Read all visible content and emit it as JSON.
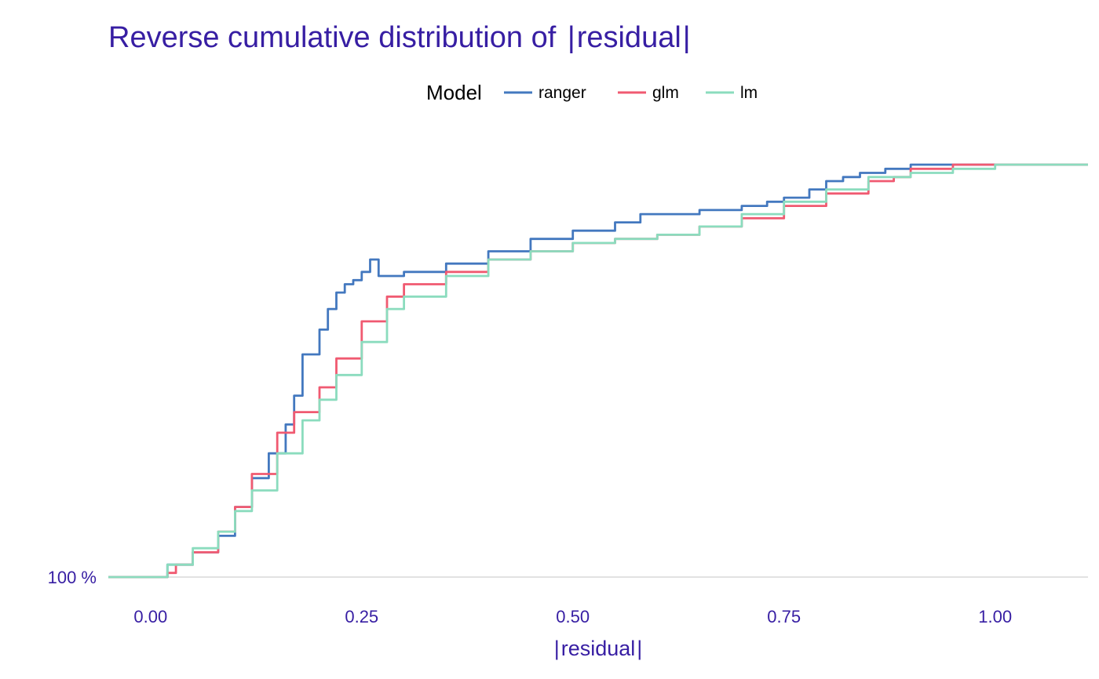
{
  "colors": {
    "text": "#371ea3",
    "baseline": "#e2e2e2"
  },
  "chart_data": {
    "type": "line",
    "title": "Reverse cumulative distribution of |residual|",
    "title_parts": {
      "prefix": "Reverse cumulative distribution of ",
      "var": "residual"
    },
    "xlabel": "|residual|",
    "xlabel_var": "residual",
    "ylabel": "",
    "xlim": [
      -0.05,
      1.11
    ],
    "ylim": [
      0,
      100
    ],
    "x_ticks": [
      {
        "value": 0.0,
        "label": "0.00"
      },
      {
        "value": 0.25,
        "label": "0.25"
      },
      {
        "value": 0.5,
        "label": "0.50"
      },
      {
        "value": 0.75,
        "label": "0.75"
      },
      {
        "value": 1.0,
        "label": "1.00"
      }
    ],
    "y_ticks": [
      {
        "value": 0,
        "label": "100 %"
      }
    ],
    "grid": false,
    "legend": {
      "title": "Model",
      "position": "top"
    },
    "series": [
      {
        "name": "ranger",
        "color": "#4378bf",
        "x": [
          -0.05,
          0.0,
          0.02,
          0.05,
          0.08,
          0.1,
          0.12,
          0.14,
          0.16,
          0.17,
          0.18,
          0.2,
          0.21,
          0.22,
          0.23,
          0.24,
          0.25,
          0.26,
          0.27,
          0.3,
          0.35,
          0.4,
          0.45,
          0.5,
          0.55,
          0.58,
          0.6,
          0.65,
          0.7,
          0.73,
          0.75,
          0.78,
          0.8,
          0.82,
          0.84,
          0.87,
          0.9,
          1.0,
          1.11
        ],
        "y": [
          0,
          0,
          3,
          6,
          10,
          17,
          24,
          30,
          37,
          44,
          54,
          60,
          65,
          69,
          71,
          72,
          74,
          77,
          73,
          74,
          76,
          79,
          82,
          84,
          86,
          88,
          88,
          89,
          90,
          91,
          92,
          94,
          96,
          97,
          98,
          99,
          100,
          100,
          100
        ]
      },
      {
        "name": "glm",
        "color": "#f05a71",
        "x": [
          -0.05,
          0.0,
          0.02,
          0.03,
          0.05,
          0.08,
          0.1,
          0.12,
          0.15,
          0.17,
          0.2,
          0.22,
          0.25,
          0.28,
          0.3,
          0.35,
          0.4,
          0.45,
          0.5,
          0.55,
          0.6,
          0.65,
          0.7,
          0.75,
          0.8,
          0.85,
          0.88,
          0.9,
          0.95,
          1.0,
          1.11
        ],
        "y": [
          0,
          0,
          1,
          3,
          6,
          11,
          17,
          25,
          35,
          40,
          46,
          53,
          62,
          68,
          71,
          74,
          77,
          79,
          81,
          82,
          83,
          85,
          87,
          90,
          93,
          96,
          97,
          99,
          100,
          100,
          100
        ]
      },
      {
        "name": "lm",
        "color": "#8bdcbe",
        "x": [
          -0.05,
          0.0,
          0.02,
          0.05,
          0.08,
          0.1,
          0.12,
          0.15,
          0.18,
          0.2,
          0.22,
          0.25,
          0.28,
          0.3,
          0.35,
          0.4,
          0.45,
          0.5,
          0.55,
          0.6,
          0.65,
          0.7,
          0.75,
          0.8,
          0.85,
          0.9,
          0.95,
          1.0,
          1.11
        ],
        "y": [
          0,
          0,
          3,
          7,
          11,
          16,
          21,
          30,
          38,
          43,
          49,
          57,
          65,
          68,
          73,
          77,
          79,
          81,
          82,
          83,
          85,
          88,
          91,
          94,
          97,
          98,
          99,
          100,
          100
        ]
      }
    ]
  }
}
